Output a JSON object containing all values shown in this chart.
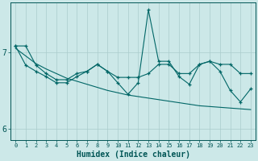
{
  "title": "",
  "xlabel": "Humidex (Indice chaleur)",
  "x_values": [
    0,
    1,
    2,
    3,
    4,
    5,
    6,
    7,
    8,
    9,
    10,
    11,
    12,
    13,
    14,
    15,
    16,
    17,
    18,
    19,
    20,
    21,
    22,
    23
  ],
  "line1": [
    7.08,
    7.08,
    6.83,
    6.72,
    6.64,
    6.64,
    6.72,
    6.75,
    6.84,
    6.75,
    6.67,
    6.67,
    6.67,
    6.72,
    6.84,
    6.84,
    6.72,
    6.72,
    6.84,
    6.88,
    6.84,
    6.84,
    6.72,
    6.72
  ],
  "line2": [
    7.08,
    6.83,
    6.75,
    6.68,
    6.6,
    6.6,
    6.68,
    6.75,
    6.84,
    6.75,
    6.6,
    6.45,
    6.6,
    7.55,
    6.88,
    6.88,
    6.68,
    6.58,
    6.84,
    6.88,
    6.75,
    6.5,
    6.35,
    6.52
  ],
  "line3": [
    7.05,
    6.95,
    6.85,
    6.78,
    6.72,
    6.66,
    6.62,
    6.58,
    6.54,
    6.5,
    6.47,
    6.44,
    6.42,
    6.4,
    6.38,
    6.36,
    6.34,
    6.32,
    6.3,
    6.29,
    6.28,
    6.27,
    6.26,
    6.25
  ],
  "bg_color": "#cce8e8",
  "line_color": "#006666",
  "grid_color": "#aacccc",
  "ylim": [
    5.85,
    7.65
  ],
  "yticks": [
    6,
    7
  ],
  "font_color": "#005555"
}
